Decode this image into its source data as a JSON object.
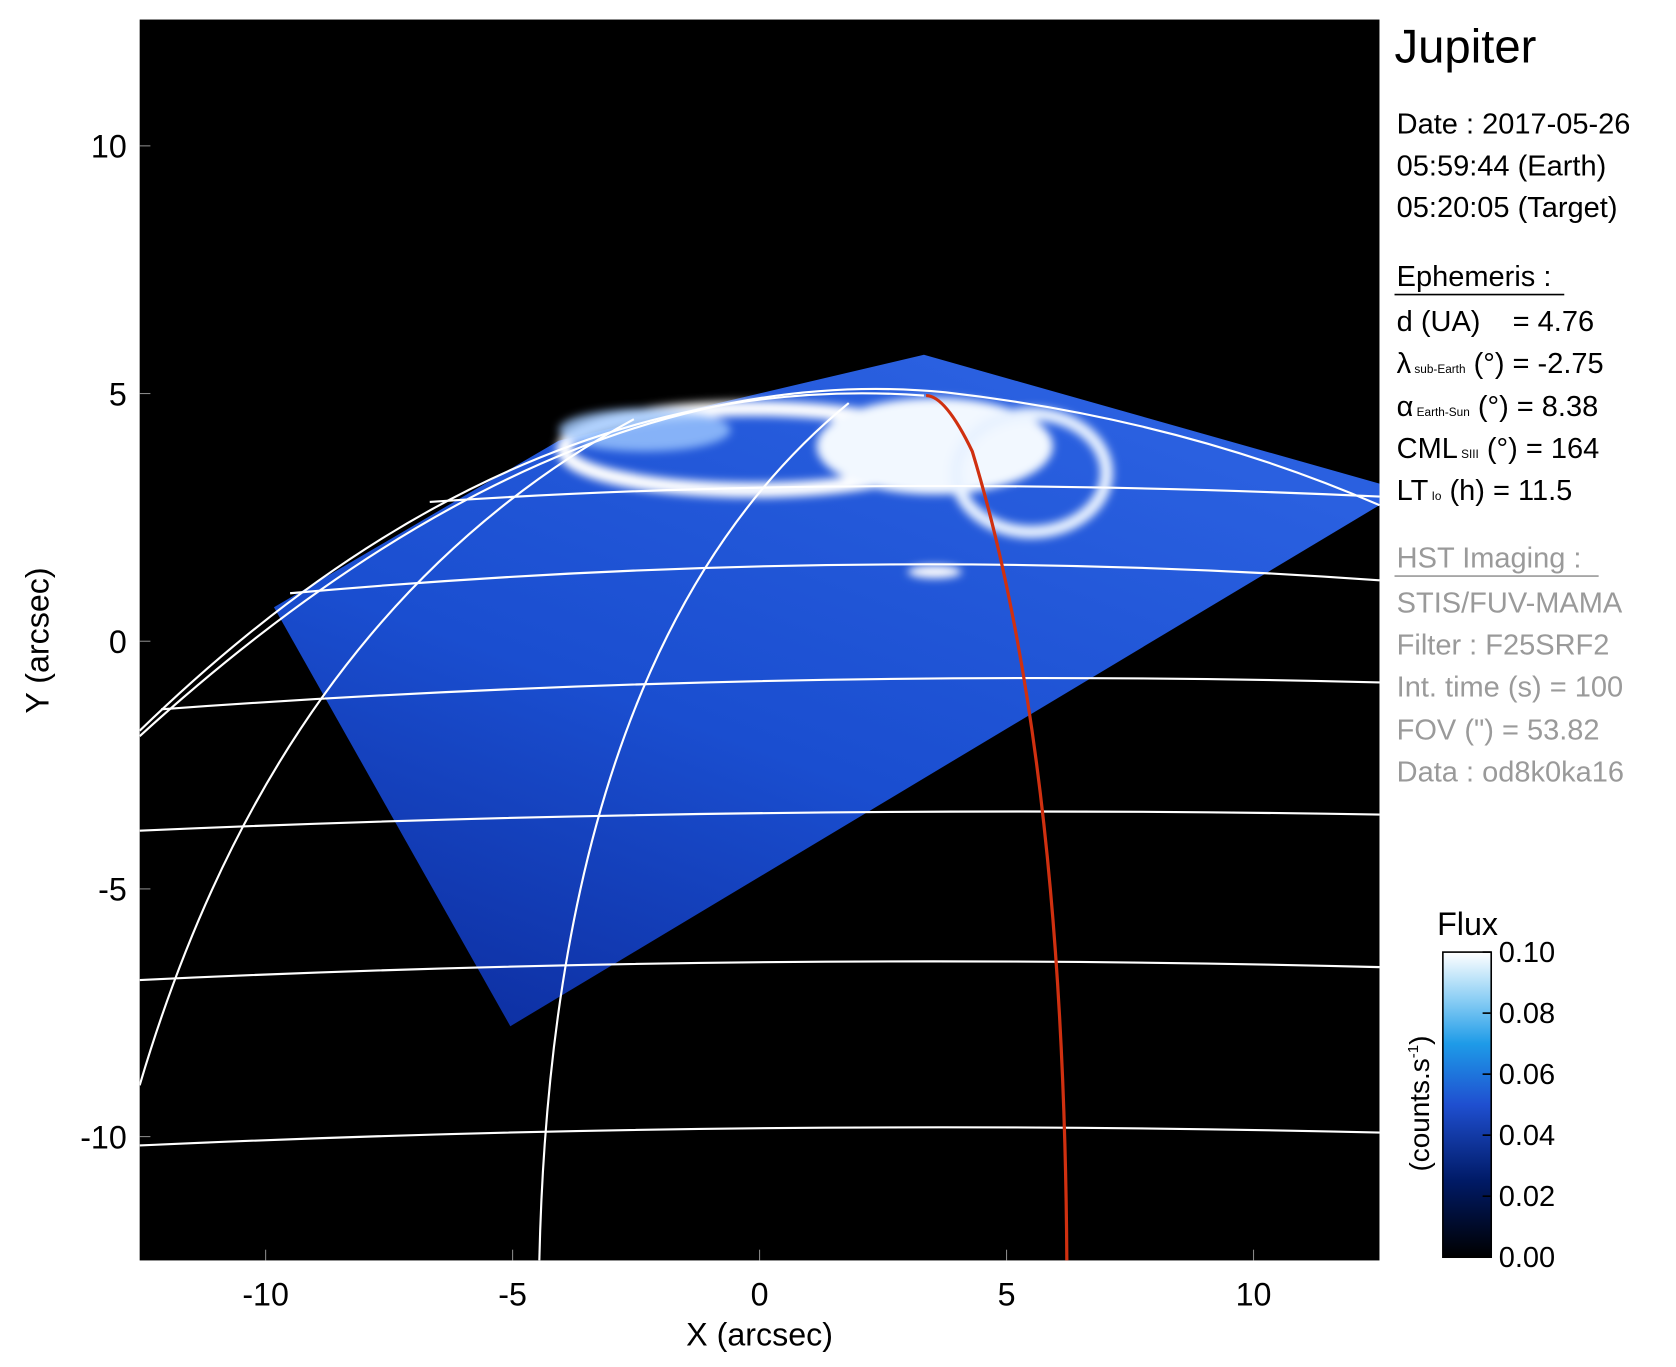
{
  "chart_data": {
    "type": "image",
    "title": "Jupiter",
    "xlabel": "X (arcsec)",
    "ylabel": "Y (arcsec)",
    "xlim": [
      -12.55,
      12.55
    ],
    "ylim": [
      -12.5,
      12.55
    ],
    "xticks": [
      -10,
      -5,
      0,
      5,
      10
    ],
    "yticks": [
      -10,
      -5,
      0,
      5,
      10
    ],
    "colorbar": {
      "title": "Flux",
      "unit_base": "(counts.s",
      "unit_exp": "-1",
      "unit_close": ")",
      "lim": [
        0,
        0.1
      ],
      "ticks": [
        {
          "value": 0,
          "label": "0.00"
        },
        {
          "value": 0.02,
          "label": "0.02"
        },
        {
          "value": 0.04,
          "label": "0.04"
        },
        {
          "value": 0.06,
          "label": "0.06"
        },
        {
          "value": 0.08,
          "label": "0.08"
        },
        {
          "value": 0.1,
          "label": "0.10"
        }
      ]
    }
  },
  "info": {
    "date": "Date : 2017-05-26",
    "earth_time": "05:59:44 (Earth)",
    "target_time": "05:20:05 (Target)",
    "ephemeris_title": "Ephemeris :",
    "distance": "d (UA)    = 4.76",
    "lat_symbol": "λ",
    "lat_sub": "sub-Earth",
    "lat_text": " (°) = -2.75",
    "phase_symbol": "α",
    "phase_sub": "Earth-Sun",
    "phase_text": " (°) = 8.38",
    "cml_symbol": "CML",
    "cml_sub": "SIII",
    "cml_text": " (°) = 164",
    "lt_symbol": "LT",
    "lt_sub": "Io",
    "lt_text": " (h) = 11.5",
    "imaging_title": "HST Imaging :",
    "instrument": "STIS/FUV-MAMA",
    "filter": "Filter : F25SRF2",
    "int_time": "Int. time (s) = 100",
    "fov": "FOV (\") = 53.82",
    "dataset": "Data : od8k0ka16"
  }
}
